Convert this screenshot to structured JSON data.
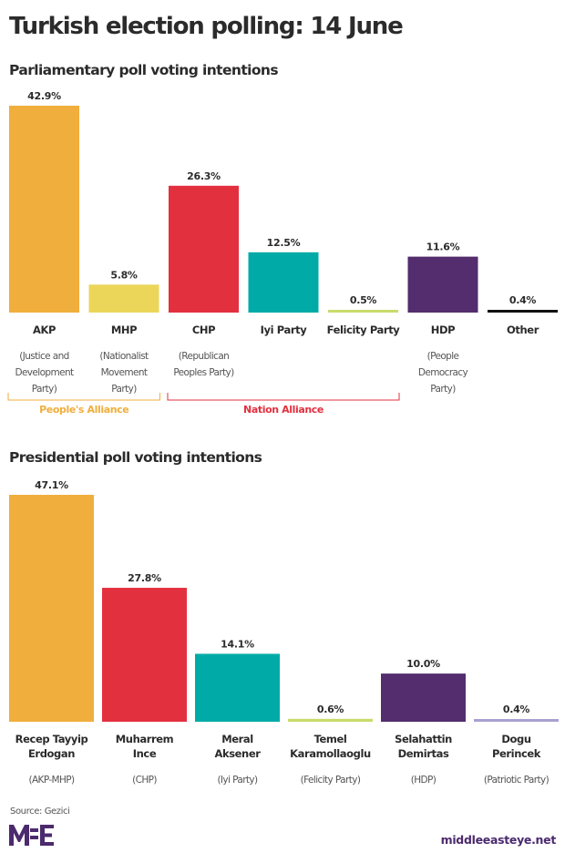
{
  "title": "Turkish election polling: 14 June",
  "source": "Source: Gezici",
  "logo_text": "MEE",
  "site": "middleeasteye.net",
  "colors": {
    "akp": "#f0ae3c",
    "mhp": "#ecd65a",
    "chp": "#e3303f",
    "iyi": "#00aba7",
    "felicity": "#c7dc6a",
    "hdp": "#532d6d",
    "other": "#111111",
    "patriotic": "#a7a2d0",
    "peoples_alliance": "#f0ae3c",
    "nation_alliance": "#e3303f"
  },
  "chart_data": [
    {
      "type": "bar",
      "title": "Parliamentary poll voting intentions",
      "xlabel": "",
      "ylabel": "",
      "ylim": [
        0,
        42.9
      ],
      "grid": false,
      "categories": [
        "AKP",
        "MHP",
        "CHP",
        "Iyi Party",
        "Felicity Party",
        "HDP",
        "Other"
      ],
      "descriptions": [
        "(Justice and|Development|Party)",
        "(Nationalist|Movement|Party)",
        "(Republican|Peoples Party)",
        "",
        "",
        "(People|Democracy|Party)",
        ""
      ],
      "values": [
        42.9,
        5.8,
        26.3,
        12.5,
        0.5,
        11.6,
        0.4
      ],
      "value_labels": [
        "42.9%",
        "5.8%",
        "26.3%",
        "12.5%",
        "0.5%",
        "11.6%",
        "0.4%"
      ],
      "bar_colors": [
        "#f0ae3c",
        "#ecd65a",
        "#e3303f",
        "#00aba7",
        "#c7dc6a",
        "#532d6d",
        "#111111"
      ],
      "groups": [
        {
          "label": "People's Alliance",
          "members": [
            "AKP",
            "MHP"
          ],
          "color": "#f0ae3c"
        },
        {
          "label": "Nation Alliance",
          "members": [
            "CHP",
            "Iyi Party",
            "Felicity Party"
          ],
          "color": "#e3303f"
        }
      ]
    },
    {
      "type": "bar",
      "title": "Presidential poll voting intentions",
      "xlabel": "",
      "ylabel": "",
      "ylim": [
        0,
        47.1
      ],
      "grid": false,
      "categories": [
        "Recep Tayyip|Erdogan",
        "Muharrem|Ince",
        "Meral|Aksener",
        "Temel|Karamollaoglu",
        "Selahattin|Demirtas",
        "Dogu|Perincek"
      ],
      "descriptions": [
        "(AKP-MHP)",
        "(CHP)",
        "(Iyi Party)",
        "(Felicity Party)",
        "(HDP)",
        "(Patriotic Party)"
      ],
      "values": [
        47.1,
        27.8,
        14.1,
        0.6,
        10.0,
        0.4
      ],
      "value_labels": [
        "47.1%",
        "27.8%",
        "14.1%",
        "0.6%",
        "10.0%",
        "0.4%"
      ],
      "bar_colors": [
        "#f0ae3c",
        "#e3303f",
        "#00aba7",
        "#c7dc6a",
        "#532d6d",
        "#a7a2d0"
      ]
    }
  ]
}
